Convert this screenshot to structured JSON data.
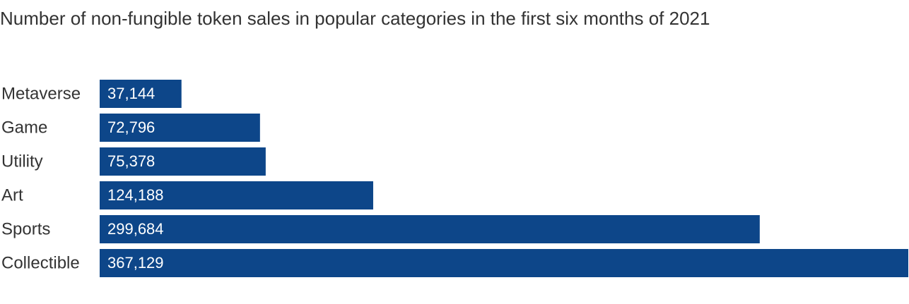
{
  "chart_data": {
    "type": "bar",
    "orientation": "horizontal",
    "title": "Number of non-fungible token sales in popular categories in the first six months of 2021",
    "categories": [
      "Metaverse",
      "Game",
      "Utility",
      "Art",
      "Sports",
      "Collectible"
    ],
    "values": [
      37144,
      72796,
      75378,
      124188,
      299684,
      367129
    ],
    "value_labels": [
      "37,144",
      "72,796",
      "75,378",
      "124,188",
      "299,684",
      "367,129"
    ],
    "color": "#0d4689",
    "xlim": [
      0,
      367129
    ]
  }
}
